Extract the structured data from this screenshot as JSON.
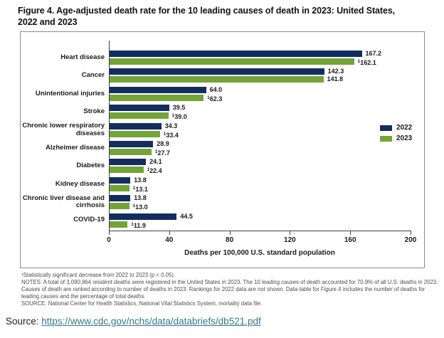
{
  "figure": {
    "title_line1": "Figure 4. Age-adjusted death rate for the 10 leading causes of death in 2023: United States,",
    "title_line2": "2022 and 2023"
  },
  "chart_data": {
    "type": "bar",
    "orientation": "horizontal",
    "title": "Figure 4. Age-adjusted death rate for the 10 leading causes of death in 2023: United States, 2022 and 2023",
    "categories": [
      "Heart disease",
      "Cancer",
      "Unintentional injuries",
      "Stroke",
      "Chronic lower respiratory diseases",
      "Alzheimer disease",
      "Diabetes",
      "Kidney disease",
      "Chronic liver disease and cirrhosis",
      "COVID-19"
    ],
    "series": [
      {
        "name": "2022",
        "color": "#132d5f",
        "values": [
          167.2,
          142.3,
          64.0,
          39.5,
          34.3,
          28.9,
          24.1,
          13.8,
          13.8,
          44.5
        ],
        "significant_decrease_flags": [
          false,
          false,
          false,
          false,
          false,
          false,
          false,
          false,
          false,
          false
        ]
      },
      {
        "name": "2023",
        "color": "#74a338",
        "values": [
          162.1,
          141.8,
          62.3,
          39.0,
          33.4,
          27.7,
          22.4,
          13.1,
          13.0,
          11.9
        ],
        "significant_decrease_flags": [
          true,
          false,
          true,
          true,
          true,
          true,
          true,
          true,
          true,
          true
        ]
      }
    ],
    "significance_marker": "1",
    "xlabel": "Deaths per 100,000 U.S. standard population",
    "xlim": [
      0,
      200
    ],
    "xticks": [
      0,
      40,
      80,
      120,
      160,
      200
    ],
    "legend_position": "right",
    "grid": false
  },
  "footnotes": {
    "significance": "¹Statistically significant decrease from 2022 to 2023 (p < 0.05).",
    "notes": "NOTES: A total of 3,090,964 resident deaths were registered in the United States in 2023. The 10 leading causes of death accounted for 70.9% of all U.S. deaths in 2023. Causes of death are ranked according to number of deaths in 2023. Rankings for 2022 data are not shown. Data table for Figure 4 includes the number of deaths for leading causes and the percentage of total deaths.",
    "data_source": "SOURCE: National Center for Health Statistics, National Vital Statistics System, mortality data file."
  },
  "source": {
    "label": "Source:",
    "url": "https://www.cdc.gov/nchs/data/databriefs/db521.pdf"
  }
}
